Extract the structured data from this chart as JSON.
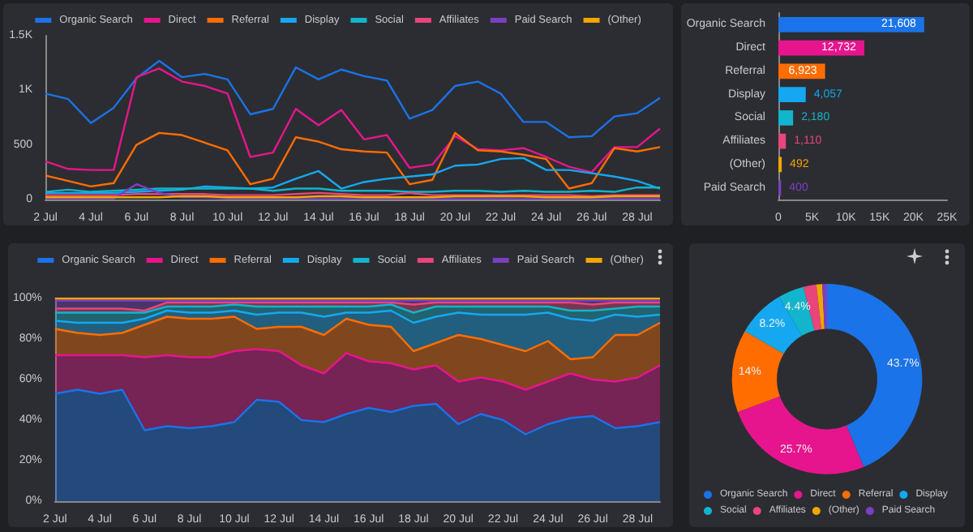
{
  "chart_data": [
    {
      "type": "line",
      "categories": [
        "2 Jul",
        null,
        "4 Jul",
        null,
        "6 Jul",
        null,
        "8 Jul",
        null,
        "10 Jul",
        null,
        "12 Jul",
        null,
        "14 Jul",
        null,
        "16 Jul",
        null,
        "18 Jul",
        null,
        "20 Jul",
        null,
        "22 Jul",
        null,
        "24 Jul",
        null,
        "26 Jul",
        null,
        "28 Jul",
        null
      ],
      "ylim": [
        0,
        1500
      ],
      "yticks": [
        0,
        {
          "value": 500,
          "label": "500"
        },
        {
          "value": 1000,
          "label": "1K"
        },
        {
          "value": 1500,
          "label": "1.5K"
        }
      ],
      "legend": "top",
      "marker": "none",
      "series": [
        {
          "name": "Organic Search",
          "color": "#1a73e8",
          "values": [
            970,
            920,
            700,
            840,
            1110,
            1270,
            1120,
            1150,
            1100,
            780,
            830,
            1210,
            1100,
            1190,
            1130,
            1090,
            740,
            820,
            1040,
            1080,
            970,
            710,
            710,
            570,
            580,
            760,
            790,
            930
          ]
        },
        {
          "name": "Direct",
          "color": "#e6158d",
          "values": [
            350,
            280,
            270,
            270,
            1120,
            1200,
            1080,
            1040,
            970,
            390,
            430,
            830,
            680,
            820,
            550,
            590,
            290,
            320,
            580,
            460,
            450,
            470,
            390,
            300,
            250,
            480,
            480,
            650
          ]
        },
        {
          "name": "Referral",
          "color": "#ff6d01",
          "values": [
            220,
            170,
            120,
            150,
            500,
            610,
            590,
            520,
            450,
            140,
            190,
            570,
            530,
            460,
            440,
            430,
            140,
            180,
            610,
            450,
            440,
            410,
            370,
            100,
            150,
            470,
            440,
            480
          ]
        },
        {
          "name": "Display",
          "color": "#15a8f0",
          "values": [
            60,
            60,
            60,
            60,
            70,
            80,
            90,
            120,
            110,
            100,
            110,
            190,
            260,
            100,
            160,
            190,
            210,
            230,
            310,
            320,
            370,
            380,
            270,
            270,
            240,
            210,
            170,
            100
          ]
        },
        {
          "name": "Social",
          "color": "#12b5cb",
          "values": [
            70,
            90,
            70,
            80,
            90,
            100,
            100,
            100,
            100,
            100,
            80,
            100,
            100,
            80,
            80,
            80,
            70,
            70,
            80,
            80,
            70,
            80,
            70,
            70,
            80,
            70,
            110,
            110
          ]
        },
        {
          "name": "Affiliates",
          "color": "#e8457c",
          "values": [
            40,
            40,
            40,
            40,
            50,
            50,
            50,
            50,
            40,
            40,
            40,
            50,
            60,
            50,
            40,
            40,
            60,
            40,
            40,
            40,
            40,
            40,
            40,
            40,
            30,
            40,
            40,
            40
          ]
        },
        {
          "name": "Paid Search",
          "color": "#7b3fc4",
          "values": [
            10,
            10,
            10,
            10,
            140,
            60,
            20,
            20,
            10,
            10,
            10,
            10,
            10,
            10,
            10,
            10,
            10,
            10,
            10,
            10,
            10,
            10,
            10,
            10,
            10,
            10,
            10,
            10
          ]
        },
        {
          "name": "(Other)",
          "color": "#f2a600",
          "values": [
            20,
            20,
            20,
            20,
            20,
            20,
            30,
            30,
            20,
            20,
            20,
            20,
            30,
            30,
            20,
            20,
            20,
            20,
            30,
            30,
            30,
            30,
            20,
            20,
            20,
            30,
            30,
            30
          ]
        }
      ]
    },
    {
      "type": "bar",
      "orientation": "horizontal",
      "categories": [
        "Organic Search",
        "Direct",
        "Referral",
        "Display",
        "Social",
        "Affiliates",
        "(Other)",
        "Paid Search"
      ],
      "values": [
        21608,
        12732,
        6923,
        4057,
        2180,
        1110,
        492,
        400
      ],
      "value_labels": [
        "21,608",
        "12,732",
        "6,923",
        "4,057",
        "2,180",
        "1,110",
        "492",
        "400"
      ],
      "colors": [
        "#1a73e8",
        "#e6158d",
        "#ff6d01",
        "#15a8f0",
        "#12b5cb",
        "#e8457c",
        "#f2a600",
        "#7b3fc4"
      ],
      "xlim": [
        0,
        25000
      ],
      "xticks": [
        0,
        {
          "value": 5000,
          "label": "5K"
        },
        {
          "value": 10000,
          "label": "10K"
        },
        {
          "value": 15000,
          "label": "15K"
        },
        {
          "value": 20000,
          "label": "20K"
        },
        {
          "value": 25000,
          "label": "25K"
        }
      ]
    },
    {
      "type": "area",
      "stacked": true,
      "categories": [
        "2 Jul",
        null,
        "4 Jul",
        null,
        "6 Jul",
        null,
        "8 Jul",
        null,
        "10 Jul",
        null,
        "12 Jul",
        null,
        "14 Jul",
        null,
        "16 Jul",
        null,
        "18 Jul",
        null,
        "20 Jul",
        null,
        "22 Jul",
        null,
        "24 Jul",
        null,
        "26 Jul",
        null,
        "28 Jul",
        null
      ],
      "ylim": [
        0,
        100
      ],
      "yticks": [
        {
          "value": 0,
          "label": "0%"
        },
        {
          "value": 20,
          "label": "20%"
        },
        {
          "value": 40,
          "label": "40%"
        },
        {
          "value": 60,
          "label": "60%"
        },
        {
          "value": 80,
          "label": "80%"
        },
        {
          "value": 100,
          "label": "100%"
        }
      ],
      "legend": "top",
      "marker": "none",
      "series": [
        {
          "name": "Organic Search",
          "color": "#1a73e8",
          "values": [
            53,
            55,
            53,
            55,
            35,
            37,
            36,
            37,
            39,
            50,
            49,
            40,
            39,
            43,
            46,
            44,
            47,
            48,
            38,
            43,
            40,
            33,
            38,
            41,
            42,
            36,
            37,
            39
          ]
        },
        {
          "name": "Direct",
          "color": "#e6158d",
          "values": [
            19,
            17,
            19,
            17,
            36,
            35,
            35,
            34,
            35,
            25,
            25,
            27,
            24,
            30,
            23,
            24,
            18,
            19,
            21,
            18,
            19,
            22,
            21,
            22,
            18,
            23,
            24,
            28
          ]
        },
        {
          "name": "Referral",
          "color": "#ff6d01",
          "values": [
            13,
            11,
            10,
            11,
            16,
            19,
            19,
            19,
            17,
            10,
            12,
            19,
            19,
            17,
            18,
            18,
            9,
            11,
            23,
            19,
            18,
            19,
            20,
            7,
            11,
            23,
            21,
            21
          ]
        },
        {
          "name": "Display",
          "color": "#15a8f0",
          "values": [
            4,
            5,
            6,
            5,
            3,
            3,
            3,
            3,
            3,
            7,
            7,
            7,
            9,
            3,
            6,
            8,
            14,
            13,
            11,
            12,
            15,
            18,
            14,
            20,
            18,
            10,
            9,
            4
          ]
        },
        {
          "name": "Social",
          "color": "#12b5cb",
          "values": [
            4,
            5,
            5,
            5,
            3,
            2,
            3,
            3,
            3,
            4,
            3,
            3,
            5,
            3,
            3,
            3,
            5,
            5,
            3,
            4,
            4,
            4,
            3,
            4,
            5,
            3,
            5,
            4
          ]
        },
        {
          "name": "Affiliates",
          "color": "#e8457c",
          "values": [
            2,
            2,
            2,
            2,
            1,
            2,
            2,
            2,
            1,
            2,
            2,
            2,
            2,
            2,
            2,
            1,
            4,
            2,
            2,
            2,
            2,
            2,
            2,
            4,
            3,
            3,
            2,
            2
          ]
        },
        {
          "name": "Paid Search",
          "color": "#7b3fc4",
          "values": [
            4,
            4,
            4,
            4,
            5,
            1,
            1,
            1,
            1,
            1,
            1,
            1,
            1,
            1,
            1,
            1,
            2,
            1,
            1,
            1,
            1,
            1,
            1,
            1,
            2,
            1,
            1,
            1
          ]
        },
        {
          "name": "(Other)",
          "color": "#f2a600",
          "values": [
            1,
            1,
            1,
            1,
            1,
            1,
            1,
            1,
            1,
            1,
            1,
            1,
            1,
            1,
            1,
            1,
            1,
            1,
            1,
            1,
            1,
            1,
            1,
            1,
            1,
            1,
            1,
            1
          ]
        }
      ]
    },
    {
      "type": "donut",
      "categories": [
        "Organic Search",
        "Direct",
        "Referral",
        "Display",
        "Social",
        "Affiliates",
        "(Other)",
        "Paid Search"
      ],
      "values": [
        43.7,
        25.7,
        14,
        8.2,
        4.4,
        2.2,
        1.0,
        0.8
      ],
      "value_labels": [
        "43.7%",
        "25.7%",
        "14%",
        "8.2%",
        "4.4%",
        null,
        null,
        null
      ],
      "colors": [
        "#1a73e8",
        "#e6158d",
        "#ff6d01",
        "#15a8f0",
        "#12b5cb",
        "#e8457c",
        "#f2a600",
        "#7b3fc4"
      ],
      "legend": "bottom"
    }
  ]
}
